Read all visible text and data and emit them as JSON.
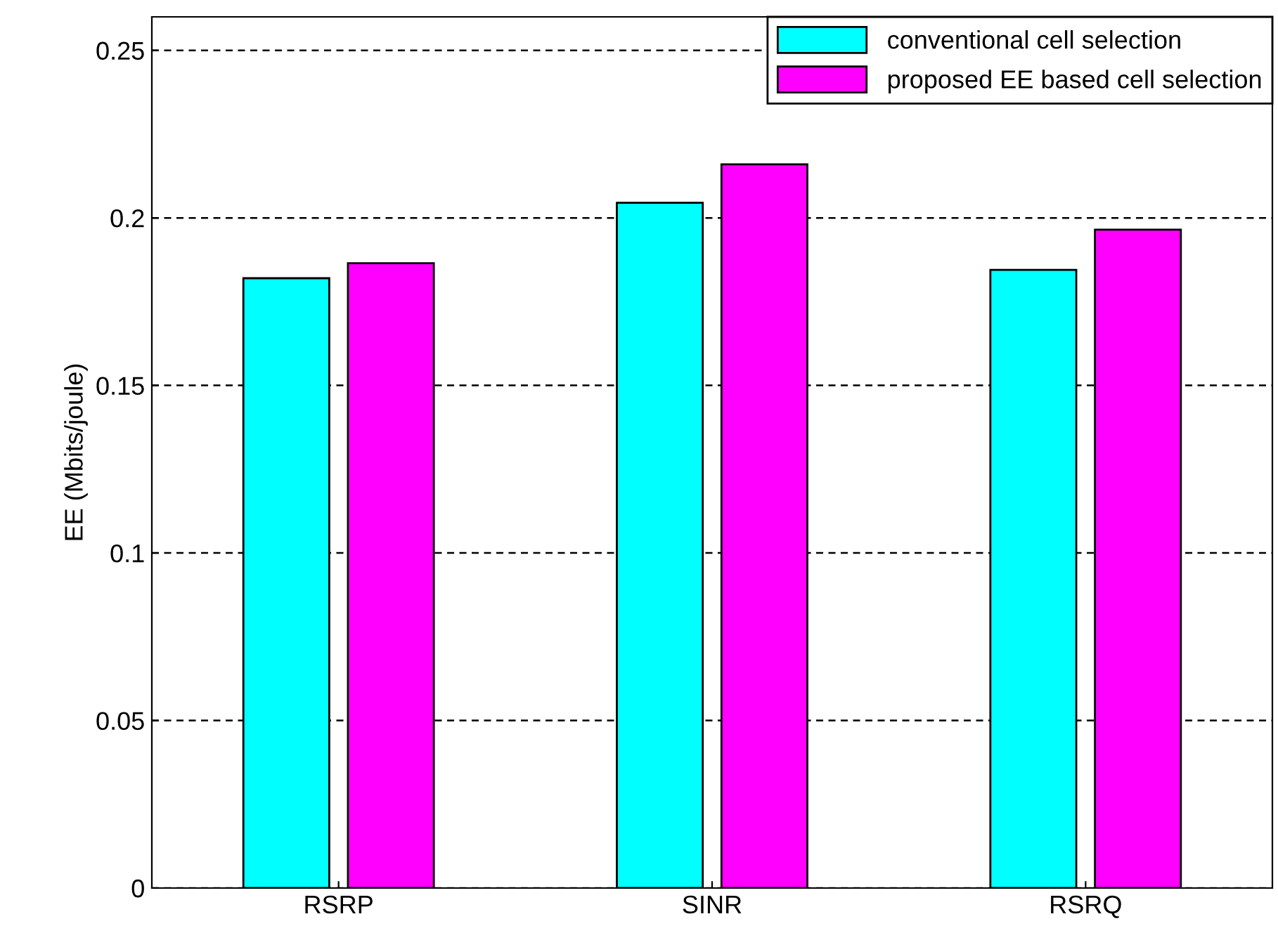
{
  "chart_data": {
    "type": "bar",
    "ylabel": "EE (Mbits/joule)",
    "categories": [
      "RSRP",
      "SINR",
      "RSRQ"
    ],
    "series": [
      {
        "name": "conventional cell selection",
        "color": "#00ffff",
        "values": [
          0.182,
          0.2045,
          0.1845
        ]
      },
      {
        "name": "proposed EE based cell selection",
        "color": "#ff00ff",
        "values": [
          0.1865,
          0.216,
          0.1965
        ]
      }
    ],
    "ylim": [
      0,
      0.26
    ],
    "yticks": [
      0,
      0.05,
      0.1,
      0.15,
      0.2,
      0.25
    ],
    "grid": "y",
    "legend": "top right"
  }
}
